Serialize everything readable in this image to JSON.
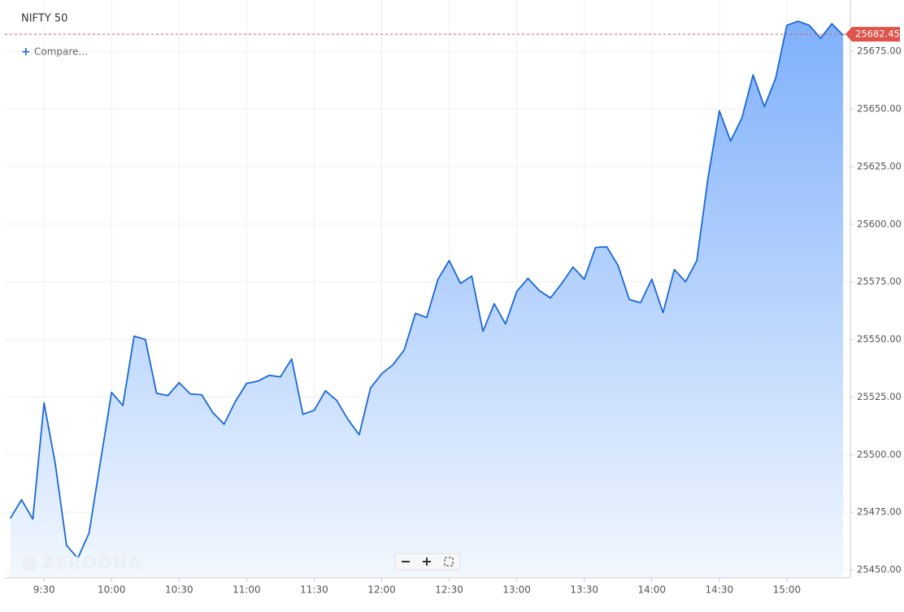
{
  "chart_data": {
    "type": "area",
    "title": "NIFTY 50",
    "compare_label": "Compare...",
    "watermark": "ZERODHA",
    "color": "#1a68d6",
    "grid": true,
    "x": [
      555,
      560,
      565,
      570,
      575,
      580,
      585,
      590,
      595,
      600,
      605,
      610,
      615,
      620,
      625,
      630,
      635,
      640,
      645,
      650,
      655,
      660,
      665,
      670,
      675,
      680,
      685,
      690,
      695,
      700,
      705,
      710,
      715,
      720,
      725,
      730,
      735,
      740,
      745,
      750,
      755,
      760,
      765,
      770,
      775,
      780,
      785,
      790,
      795,
      800,
      805,
      810,
      815,
      820,
      825,
      830,
      835,
      840,
      845,
      850,
      855,
      860,
      865,
      870,
      875,
      880,
      885,
      890,
      895,
      900,
      905,
      910,
      915,
      920,
      925
    ],
    "values": [
      25472.3,
      25480.4,
      25472,
      25522.4,
      25496,
      25460.6,
      25455,
      25466,
      25496.6,
      25527,
      25521.3,
      25551.4,
      25550,
      25526.6,
      25525.6,
      25531.2,
      25526.3,
      25526,
      25518.2,
      25513.2,
      25523.1,
      25530.9,
      25531.9,
      25534.4,
      25533.7,
      25541.5,
      25517.5,
      25519.2,
      25527.7,
      25523.5,
      25515.3,
      25508.6,
      25528.8,
      25535.1,
      25539,
      25545.4,
      25561.3,
      25559.5,
      25576.1,
      25584.2,
      25574.3,
      25577.5,
      25553.5,
      25565.5,
      25556.7,
      25570.8,
      25576.5,
      25571.2,
      25568,
      25574.3,
      25581.4,
      25576.1,
      25589.9,
      25590.2,
      25582.1,
      25567.3,
      25565.9,
      25576.1,
      25561.6,
      25580.3,
      25575,
      25584.2,
      25620.3,
      25649.2,
      25636.1,
      25646,
      25664.8,
      25651,
      25663.3,
      25686.3,
      25688.1,
      25686.3,
      25680.7,
      25687,
      25682
    ],
    "last_price": 25682.45,
    "xlim": [
      552.6,
      928.2
    ],
    "ylim": [
      25446.5,
      25697.3
    ],
    "xticks": [
      {
        "value": 570,
        "label": "9:30"
      },
      {
        "value": 600,
        "label": "10:00"
      },
      {
        "value": 630,
        "label": "10:30"
      },
      {
        "value": 660,
        "label": "11:00"
      },
      {
        "value": 690,
        "label": "11:30"
      },
      {
        "value": 720,
        "label": "12:00"
      },
      {
        "value": 750,
        "label": "12:30"
      },
      {
        "value": 780,
        "label": "13:00"
      },
      {
        "value": 810,
        "label": "13:30"
      },
      {
        "value": 840,
        "label": "14:00"
      },
      {
        "value": 870,
        "label": "14:30"
      },
      {
        "value": 900,
        "label": "15:00"
      }
    ],
    "yticks": [
      {
        "value": 25450,
        "label": "25450.00"
      },
      {
        "value": 25475,
        "label": "25475.00"
      },
      {
        "value": 25500,
        "label": "25500.00"
      },
      {
        "value": 25525,
        "label": "25525.00"
      },
      {
        "value": 25550,
        "label": "25550.00"
      },
      {
        "value": 25575,
        "label": "25575.00"
      },
      {
        "value": 25600,
        "label": "25600.00"
      },
      {
        "value": 25625,
        "label": "25625.00"
      },
      {
        "value": 25650,
        "label": "25650.00"
      },
      {
        "value": 25675,
        "label": "25675.00"
      }
    ]
  }
}
